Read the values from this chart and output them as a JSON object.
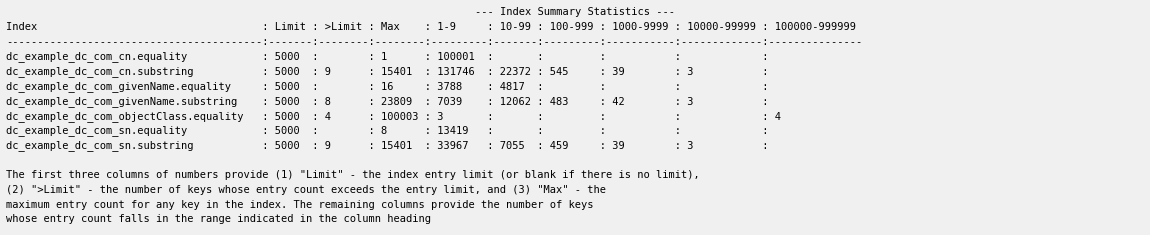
{
  "title": "        --- Index Summary Statistics ---",
  "lines": [
    "        --- Index Summary Statistics ---",
    "Index                                    : Limit : >Limit : Max    : 1-9     : 10-99 : 100-999 : 1000-9999 : 10000-99999 : 100000-999999",
    "-----------------------------------------:-------:--------:--------:---------:-------:---------:-----------:-------------:---------------",
    "dc_example_dc_com_cn.equality            : 5000  :        : 1      : 100001  :       :         :           :             :",
    "dc_example_dc_com_cn.substring           : 5000  : 9      : 15401  : 131746  : 22372 : 545     : 39        : 3           :",
    "dc_example_dc_com_givenName.equality     : 5000  :        : 16     : 3788    : 4817  :         :           :             :",
    "dc_example_dc_com_givenName.substring    : 5000  : 8      : 23809  : 7039    : 12062 : 483     : 42        : 3           :",
    "dc_example_dc_com_objectClass.equality   : 5000  : 4      : 100003 : 3       :       :         :           :             : 4",
    "dc_example_dc_com_sn.equality            : 5000  :        : 8      : 13419   :       :         :           :             :",
    "dc_example_dc_com_sn.substring           : 5000  : 9      : 15401  : 33967   : 7055  : 459     : 39        : 3           :",
    "",
    "The first three columns of numbers provide (1) \"Limit\" - the index entry limit (or blank if there is no limit),",
    "(2) \">Limit\" - the number of keys whose entry count exceeds the entry limit, and (3) \"Max\" - the",
    "maximum entry count for any key in the index. The remaining columns provide the number of keys",
    "whose entry count falls in the range indicated in the column heading"
  ],
  "bg_color": "#f0f0f0",
  "text_color": "#000000",
  "font_size": 7.5
}
